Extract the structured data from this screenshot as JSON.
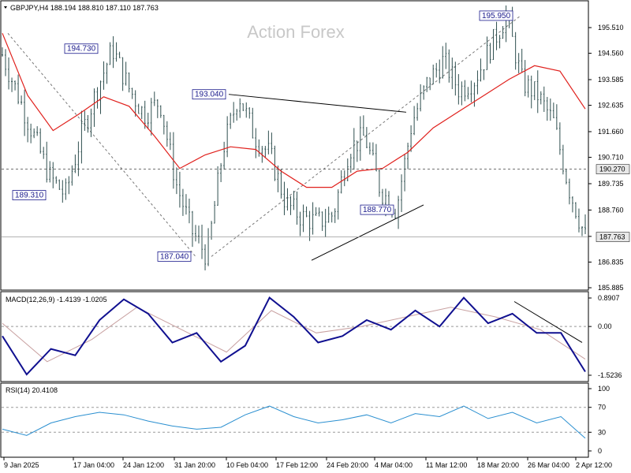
{
  "header": {
    "title": "GBPJPY,H4  188.194 188.810 187.110 187.763",
    "watermark": "Action Forex"
  },
  "colors": {
    "candles": "#2f4f4f",
    "ma": "#e0201c",
    "macd": "#101090",
    "signal": "#c8a0a0",
    "rsi": "#2a8fd0",
    "annotation": "#1a1a8c",
    "grid": "#999999"
  },
  "chart_data": [
    {
      "type": "candlestick",
      "symbol": "GBPJPY,H4",
      "ohlc": {
        "open": 188.194,
        "high": 188.81,
        "low": 187.11,
        "close": 187.763
      },
      "y_ticks": [
        "195.510",
        "194.560",
        "193.585",
        "192.635",
        "191.660",
        "190.710",
        "189.735",
        "188.760",
        "187.785",
        "186.835",
        "185.885"
      ],
      "ylim": [
        185.885,
        196.0
      ],
      "x_ticks": [
        "9 Jan 2025",
        "17 Jan 04:00",
        "24 Jan 12:00",
        "31 Jan 20:00",
        "10 Feb 04:00",
        "17 Feb 12:00",
        "24 Feb 20:00",
        "4 Mar 04:00",
        "11 Mar 12:00",
        "18 Mar 20:00",
        "26 Mar 04:00",
        "2 Apr 12:00"
      ],
      "price_series": [
        {
          "x": "9 Jan 2025",
          "y": 194.5
        },
        {
          "x": "10 Jan",
          "y": 193.0
        },
        {
          "x": "12 Jan",
          "y": 191.5
        },
        {
          "x": "13 Jan",
          "y": 190.0
        },
        {
          "x": "15 Jan",
          "y": 189.31
        },
        {
          "x": "17 Jan 04:00",
          "y": 191.5
        },
        {
          "x": "20 Jan",
          "y": 193.2
        },
        {
          "x": "22 Jan",
          "y": 194.73
        },
        {
          "x": "24 Jan 12:00",
          "y": 193.3
        },
        {
          "x": "27 Jan",
          "y": 192.3
        },
        {
          "x": "29 Jan",
          "y": 192.8
        },
        {
          "x": "31 Jan 20:00",
          "y": 189.8
        },
        {
          "x": "4 Feb",
          "y": 188.0
        },
        {
          "x": "6 Feb",
          "y": 187.04
        },
        {
          "x": "10 Feb 04:00",
          "y": 191.0
        },
        {
          "x": "11 Feb",
          "y": 193.04
        },
        {
          "x": "13 Feb",
          "y": 191.5
        },
        {
          "x": "17 Feb 12:00",
          "y": 190.8
        },
        {
          "x": "19 Feb",
          "y": 189.0
        },
        {
          "x": "21 Feb",
          "y": 188.5
        },
        {
          "x": "24 Feb 20:00",
          "y": 188.3
        },
        {
          "x": "27 Feb",
          "y": 188.6
        },
        {
          "x": "3 Mar",
          "y": 191.0
        },
        {
          "x": "4 Mar 04:00",
          "y": 191.5
        },
        {
          "x": "6 Mar",
          "y": 189.5
        },
        {
          "x": "7 Mar",
          "y": 188.77
        },
        {
          "x": "11 Mar 12:00",
          "y": 192.0
        },
        {
          "x": "13 Mar",
          "y": 193.5
        },
        {
          "x": "17 Mar",
          "y": 194.3
        },
        {
          "x": "18 Mar 20:00",
          "y": 193.2
        },
        {
          "x": "21 Mar",
          "y": 193.6
        },
        {
          "x": "24 Mar",
          "y": 194.8
        },
        {
          "x": "26 Mar 04:00",
          "y": 195.95
        },
        {
          "x": "28 Mar",
          "y": 193.5
        },
        {
          "x": "31 Mar",
          "y": 193.0
        },
        {
          "x": "2 Apr 12:00",
          "y": 192.0
        },
        {
          "x": "3 Apr",
          "y": 189.5
        },
        {
          "x": "4 Apr",
          "y": 187.763
        }
      ],
      "moving_average": [
        {
          "x": "9 Jan 2025",
          "y": 195.3
        },
        {
          "x": "13 Jan",
          "y": 193.0
        },
        {
          "x": "17 Jan 04:00",
          "y": 191.7
        },
        {
          "x": "21 Jan",
          "y": 192.3
        },
        {
          "x": "24 Jan 12:00",
          "y": 192.95
        },
        {
          "x": "29 Jan",
          "y": 192.6
        },
        {
          "x": "2 Feb",
          "y": 191.5
        },
        {
          "x": "6 Feb",
          "y": 190.3
        },
        {
          "x": "10 Feb 04:00",
          "y": 190.8
        },
        {
          "x": "13 Feb",
          "y": 191.1
        },
        {
          "x": "17 Feb 12:00",
          "y": 191.0
        },
        {
          "x": "20 Feb",
          "y": 190.2
        },
        {
          "x": "24 Feb 20:00",
          "y": 189.6
        },
        {
          "x": "28 Feb",
          "y": 189.6
        },
        {
          "x": "4 Mar 04:00",
          "y": 190.2
        },
        {
          "x": "8 Mar",
          "y": 190.3
        },
        {
          "x": "11 Mar 12:00",
          "y": 190.9
        },
        {
          "x": "15 Mar",
          "y": 191.8
        },
        {
          "x": "18 Mar 20:00",
          "y": 192.4
        },
        {
          "x": "22 Mar",
          "y": 193.0
        },
        {
          "x": "26 Mar 04:00",
          "y": 193.6
        },
        {
          "x": "29 Mar",
          "y": 194.1
        },
        {
          "x": "2 Apr 12:00",
          "y": 193.9
        },
        {
          "x": "4 Apr",
          "y": 192.5
        }
      ],
      "annotations": [
        {
          "label": "195.950",
          "value": 195.95
        },
        {
          "label": "194.730",
          "value": 194.73
        },
        {
          "label": "193.040",
          "value": 193.04
        },
        {
          "label": "189.310",
          "value": 189.31
        },
        {
          "label": "188.770",
          "value": 188.77
        },
        {
          "label": "187.040",
          "value": 187.04
        }
      ],
      "horizontal_levels": [
        {
          "label": "190.270",
          "value": 190.27,
          "style": "dashed"
        },
        {
          "label": "187.763",
          "value": 187.763,
          "style": "solid"
        }
      ]
    },
    {
      "type": "line",
      "title": "MACD(12,26,9) -1.4139 -1.0205",
      "y_ticks": [
        "0.8907",
        "0.00",
        "-1.5236"
      ],
      "ylim": [
        -1.65,
        0.95
      ],
      "macd_series": [
        {
          "x": "9 Jan 2025",
          "y": -0.3
        },
        {
          "x": "12 Jan",
          "y": -1.5
        },
        {
          "x": "15 Jan",
          "y": -0.7
        },
        {
          "x": "17 Jan 04:00",
          "y": -0.9
        },
        {
          "x": "20 Jan",
          "y": 0.2
        },
        {
          "x": "24 Jan 12:00",
          "y": 0.85
        },
        {
          "x": "28 Jan",
          "y": 0.4
        },
        {
          "x": "31 Jan 20:00",
          "y": -0.5
        },
        {
          "x": "3 Feb",
          "y": -0.2
        },
        {
          "x": "6 Feb",
          "y": -1.1
        },
        {
          "x": "10 Feb 04:00",
          "y": -0.6
        },
        {
          "x": "12 Feb",
          "y": 0.9
        },
        {
          "x": "17 Feb 12:00",
          "y": 0.3
        },
        {
          "x": "20 Feb",
          "y": -0.5
        },
        {
          "x": "24 Feb 20:00",
          "y": -0.3
        },
        {
          "x": "4 Mar 04:00",
          "y": 0.2
        },
        {
          "x": "8 Mar",
          "y": -0.1
        },
        {
          "x": "11 Mar 12:00",
          "y": 0.5
        },
        {
          "x": "14 Mar",
          "y": 0.0
        },
        {
          "x": "18 Mar 20:00",
          "y": 0.9
        },
        {
          "x": "21 Mar",
          "y": 0.1
        },
        {
          "x": "26 Mar 04:00",
          "y": 0.4
        },
        {
          "x": "29 Mar",
          "y": -0.2
        },
        {
          "x": "2 Apr 12:00",
          "y": -0.2
        },
        {
          "x": "4 Apr",
          "y": -1.4139
        }
      ],
      "signal_series": [
        {
          "x": "9 Jan 2025",
          "y": 0.1
        },
        {
          "x": "15 Jan",
          "y": -1.1
        },
        {
          "x": "20 Jan",
          "y": -0.4
        },
        {
          "x": "24 Jan 12:00",
          "y": 0.6
        },
        {
          "x": "31 Jan 20:00",
          "y": -0.1
        },
        {
          "x": "6 Feb",
          "y": -0.8
        },
        {
          "x": "12 Feb",
          "y": 0.5
        },
        {
          "x": "20 Feb",
          "y": -0.2
        },
        {
          "x": "4 Mar 04:00",
          "y": 0.0
        },
        {
          "x": "11 Mar 12:00",
          "y": 0.3
        },
        {
          "x": "18 Mar 20:00",
          "y": 0.6
        },
        {
          "x": "26 Mar 04:00",
          "y": 0.3
        },
        {
          "x": "2 Apr 12:00",
          "y": -0.1
        },
        {
          "x": "4 Apr",
          "y": -1.0205
        }
      ]
    },
    {
      "type": "line",
      "title": "RSI(14) 20.4108",
      "y_ticks": [
        "100",
        "70",
        "30",
        "0"
      ],
      "ylim": [
        0,
        100
      ],
      "levels": [
        70,
        30
      ],
      "rsi_series": [
        {
          "x": "9 Jan 2025",
          "y": 35
        },
        {
          "x": "12 Jan",
          "y": 25
        },
        {
          "x": "14 Jan",
          "y": 45
        },
        {
          "x": "17 Jan 04:00",
          "y": 55
        },
        {
          "x": "20 Jan",
          "y": 62
        },
        {
          "x": "24 Jan 12:00",
          "y": 58
        },
        {
          "x": "28 Jan",
          "y": 48
        },
        {
          "x": "31 Jan 20:00",
          "y": 40
        },
        {
          "x": "4 Feb",
          "y": 35
        },
        {
          "x": "7 Feb",
          "y": 38
        },
        {
          "x": "10 Feb 04:00",
          "y": 58
        },
        {
          "x": "12 Feb",
          "y": 72
        },
        {
          "x": "17 Feb 12:00",
          "y": 55
        },
        {
          "x": "20 Feb",
          "y": 45
        },
        {
          "x": "24 Feb 20:00",
          "y": 50
        },
        {
          "x": "4 Mar 04:00",
          "y": 58
        },
        {
          "x": "7 Mar",
          "y": 45
        },
        {
          "x": "11 Mar 12:00",
          "y": 60
        },
        {
          "x": "14 Mar",
          "y": 55
        },
        {
          "x": "18 Mar 20:00",
          "y": 72
        },
        {
          "x": "22 Mar",
          "y": 52
        },
        {
          "x": "26 Mar 04:00",
          "y": 62
        },
        {
          "x": "29 Mar",
          "y": 45
        },
        {
          "x": "2 Apr 12:00",
          "y": 55
        },
        {
          "x": "4 Apr",
          "y": 20.4108
        }
      ]
    }
  ]
}
